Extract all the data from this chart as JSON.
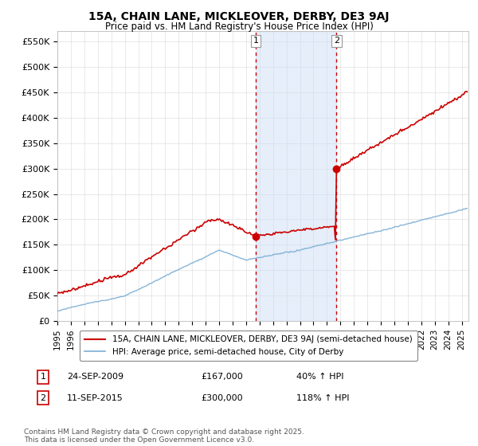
{
  "title": "15A, CHAIN LANE, MICKLEOVER, DERBY, DE3 9AJ",
  "subtitle": "Price paid vs. HM Land Registry's House Price Index (HPI)",
  "ylabel_ticks": [
    "£0",
    "£50K",
    "£100K",
    "£150K",
    "£200K",
    "£250K",
    "£300K",
    "£350K",
    "£400K",
    "£450K",
    "£500K",
    "£550K"
  ],
  "ytick_values": [
    0,
    50000,
    100000,
    150000,
    200000,
    250000,
    300000,
    350000,
    400000,
    450000,
    500000,
    550000
  ],
  "ylim": [
    0,
    570000
  ],
  "xlim_start": 1995.0,
  "xlim_end": 2025.5,
  "purchase1_date": 2009.73,
  "purchase1_price": 167000,
  "purchase1_label": "1",
  "purchase2_date": 2015.7,
  "purchase2_price": 300000,
  "purchase2_label": "2",
  "shade_color": "#ccdff5",
  "shade_alpha": 0.5,
  "vline_color": "#cc0000",
  "vline_style": "--",
  "hpi_line_color": "#7aadd4",
  "price_line_color": "#cc0000",
  "legend_label_price": "15A, CHAIN LANE, MICKLEOVER, DERBY, DE3 9AJ (semi-detached house)",
  "legend_label_hpi": "HPI: Average price, semi-detached house, City of Derby",
  "annotation1_date": "24-SEP-2009",
  "annotation1_price": "£167,000",
  "annotation1_hpi": "40% ↑ HPI",
  "annotation2_date": "11-SEP-2015",
  "annotation2_price": "£300,000",
  "annotation2_hpi": "118% ↑ HPI",
  "footer": "Contains HM Land Registry data © Crown copyright and database right 2025.\nThis data is licensed under the Open Government Licence v3.0.",
  "grid_color": "#e0e0e0"
}
